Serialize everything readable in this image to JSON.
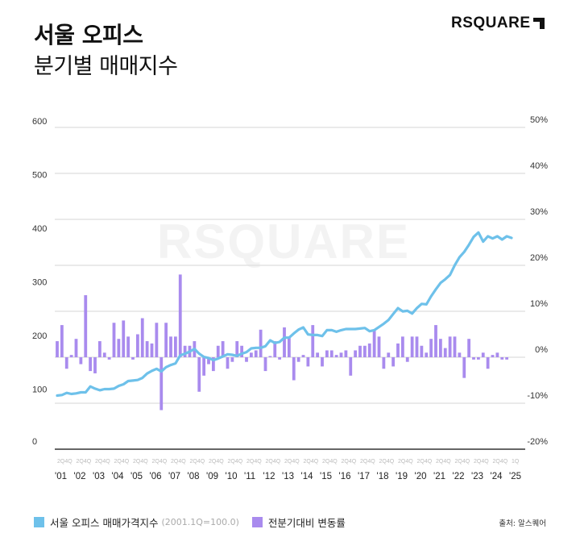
{
  "header": {
    "title_line1": "서울 오피스",
    "title_line2": "분기별 매매지수",
    "logo_text": "RSQUARE"
  },
  "watermark": "RSQUARE",
  "legend": {
    "series1_label": "서울 오피스 매매가격지수",
    "series1_note": "(2001.1Q=100.0)",
    "series2_label": "전분기대비 변동률"
  },
  "source": "출처: 알스퀘어",
  "colors": {
    "line": "#6EC1EA",
    "bar": "#A98BEE",
    "grid": "#DDDDDD",
    "axis": "#333333"
  },
  "chart_data": {
    "type": "bar+line",
    "title": "서울 오피스 분기별 매매지수",
    "left_axis": {
      "label": "매매가격지수",
      "ticks": [
        0,
        100,
        200,
        300,
        400,
        500,
        600
      ],
      "range": [
        0,
        600
      ]
    },
    "right_axis": {
      "label": "전분기대비 변동률",
      "ticks": [
        "50%",
        "40%",
        "30%",
        "20%",
        "10%",
        "0%",
        "-10%",
        "-20%"
      ],
      "range": [
        -20,
        50
      ]
    },
    "x_year_labels": [
      "'01",
      "'02",
      "'03",
      "'04",
      "'05",
      "'06",
      "'07",
      "'08",
      "'09",
      "'10",
      "'11",
      "'12",
      "'13",
      "'14",
      "'15",
      "'16",
      "'17",
      "'18",
      "'19",
      "'20",
      "'21",
      "'22",
      "'23",
      "'24",
      "'25"
    ],
    "x_sub_labels": "2Q 4Q per year, 1Q for 2025",
    "x": "2001Q1..2025Q1 (quarterly, 97 points)",
    "series": [
      {
        "name": "서울 오피스 매매가격지수 (2001.1Q=100.0)",
        "type": "line",
        "axis": "left",
        "values": [
          100,
          101,
          105,
          103,
          104,
          106,
          106,
          117,
          113,
          110,
          112,
          112,
          113,
          118,
          121,
          127,
          128,
          129,
          133,
          141,
          146,
          150,
          145,
          153,
          157,
          160,
          175,
          178,
          182,
          187,
          178,
          172,
          170,
          166,
          169,
          173,
          177,
          176,
          174,
          178,
          181,
          188,
          189,
          189,
          192,
          203,
          198,
          200,
          208,
          208,
          216,
          223,
          227,
          214,
          213,
          213,
          211,
          222,
          222,
          219,
          222,
          224,
          224,
          224,
          225,
          226,
          220,
          222,
          228,
          234,
          241,
          252,
          263,
          257,
          258,
          253,
          263,
          271,
          270,
          285,
          298,
          310,
          317,
          325,
          343,
          358,
          368,
          381,
          396,
          404,
          387,
          397,
          393,
          397,
          391,
          397,
          394
        ]
      },
      {
        "name": "전분기대비 변동률",
        "type": "bar",
        "axis": "right",
        "values": [
          3.5,
          7.0,
          -2.5,
          0.5,
          4.0,
          -1.5,
          13.5,
          -3.0,
          -3.5,
          3.5,
          1.0,
          -0.5,
          7.5,
          4.0,
          8.0,
          4.5,
          -0.5,
          5.0,
          8.5,
          3.5,
          3.0,
          7.5,
          -11.5,
          7.5,
          4.5,
          4.5,
          18.0,
          2.5,
          2.5,
          3.5,
          -7.5,
          -4.0,
          -1.5,
          -3.0,
          2.5,
          3.5,
          -2.5,
          -1.0,
          3.5,
          2.5,
          -1.0,
          1.0,
          1.5,
          6.0,
          -3.0,
          0.0,
          3.5,
          -0.5,
          6.5,
          4.5,
          -5.0,
          -1.0,
          0.5,
          -2.0,
          7.0,
          1.0,
          -2.0,
          1.5,
          1.5,
          0.5,
          1.0,
          1.5,
          -4.0,
          1.5,
          2.5,
          2.5,
          3.0,
          6.0,
          4.5,
          -2.5,
          1.0,
          -2.0,
          3.0,
          4.5,
          -1.0,
          4.5,
          4.5,
          2.5,
          1.0,
          4.0,
          7.0,
          4.0,
          2.0,
          4.5,
          4.5,
          1.0,
          -4.5,
          4.0,
          -0.5,
          -0.5,
          1.0,
          -2.5,
          0.5,
          1.0,
          -0.5,
          -0.5,
          null
        ]
      }
    ],
    "grid": true,
    "legend_position": "bottom-left"
  }
}
